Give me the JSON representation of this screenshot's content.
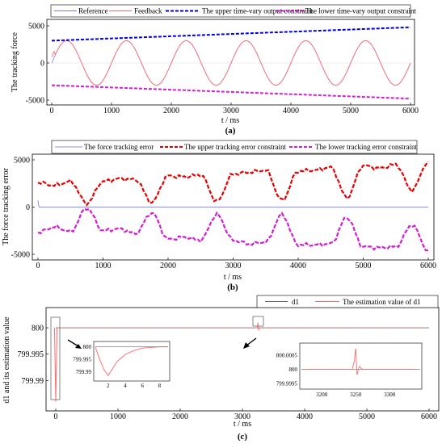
{
  "colors": {
    "reference": "#7a7aff",
    "feedback": "#ff6b6b",
    "upper": "#0000e6",
    "lower": "#d21ed2",
    "error": "#8c8cff",
    "upper_err": "#e60000",
    "d1": "#666666",
    "d1_est": "#ff6b6b"
  },
  "chart_data": [
    {
      "type": "line",
      "caption": "(a)",
      "xlabel": "t / ms",
      "ylabel": "The tracking force",
      "xlim": [
        0,
        6000
      ],
      "ylim": [
        -5000,
        5000
      ],
      "xticks": [
        "0",
        "1000",
        "2000",
        "3000",
        "4000",
        "5000",
        "6000"
      ],
      "yticks": [
        "5000",
        "0",
        "-5000"
      ],
      "legend_position": "top",
      "series": [
        {
          "name": "Reference",
          "style": "solid",
          "description": "sine, amplitude 3000, period 1000"
        },
        {
          "name": "Feedback",
          "style": "solid",
          "description": "sine, amplitude 3000, period 1000"
        },
        {
          "name": "The upper time-vary output constraint",
          "style": "dashed",
          "x": [
            0,
            6000
          ],
          "values": [
            3000,
            4800
          ]
        },
        {
          "name": "The lower time-vary output constraint",
          "style": "dashed",
          "x": [
            0,
            6000
          ],
          "values": [
            -3000,
            -4800
          ]
        }
      ]
    },
    {
      "type": "line",
      "caption": "(b)",
      "xlabel": "t / ms",
      "ylabel": "The force tracking error",
      "xlim": [
        0,
        6000
      ],
      "ylim": [
        -5000,
        5000
      ],
      "xticks": [
        "0",
        "1000",
        "2000",
        "3000",
        "4000",
        "5000",
        "6000"
      ],
      "yticks": [
        "5000",
        "0",
        "-5000"
      ],
      "legend_position": "top",
      "series": [
        {
          "name": "The force tracking error",
          "style": "solid",
          "description": "about 0"
        },
        {
          "name": "The upper tracking error constraint",
          "style": "dashed",
          "x": [
            0,
            250,
            500,
            750,
            1000,
            1250,
            1500,
            1750,
            2000,
            2250,
            2500,
            2750,
            3000,
            3250,
            3500,
            3750,
            4000,
            4250,
            4500,
            4750,
            5000,
            5250,
            5500,
            5750,
            6000
          ],
          "values": [
            2600,
            2300,
            2700,
            400,
            2700,
            3000,
            2900,
            500,
            3300,
            3200,
            3400,
            600,
            3500,
            3700,
            3900,
            700,
            3800,
            3900,
            4200,
            1000,
            4400,
            4100,
            4500,
            1800,
            4800
          ]
        },
        {
          "name": "The lower tracking error constraint",
          "style": "dashed",
          "x": [
            0,
            250,
            500,
            750,
            1000,
            1250,
            1500,
            1750,
            2000,
            2250,
            2500,
            2750,
            3000,
            3250,
            3500,
            3750,
            4000,
            4250,
            4500,
            4750,
            5000,
            5250,
            5500,
            5750,
            6000
          ],
          "values": [
            -2700,
            -2100,
            -2600,
            -100,
            -2500,
            -2300,
            -2800,
            -600,
            -3400,
            -3200,
            -3500,
            -800,
            -3500,
            -3900,
            -3700,
            -800,
            -4000,
            -4000,
            -3900,
            -1100,
            -4200,
            -4300,
            -4200,
            -1900,
            -4600
          ]
        }
      ]
    },
    {
      "type": "line",
      "caption": "(c)",
      "xlabel": "t / ms",
      "ylabel": "d1 and its estimation value",
      "xlim": [
        -100,
        6000
      ],
      "ylim": [
        799.985,
        800.002
      ],
      "xticks": [
        "0",
        "1000",
        "2000",
        "3000",
        "4000",
        "5000",
        "6000"
      ],
      "yticks": [
        "800",
        "799.995",
        "799.99"
      ],
      "legend_position": "top-right",
      "series": [
        {
          "name": "d1",
          "style": "solid",
          "x": [
            0,
            6000
          ],
          "values": [
            800,
            800
          ]
        },
        {
          "name": "The estimation value of d1",
          "style": "solid",
          "description": "800 with a brief dip to about 799.988 near t = 2 and a small spike near t = 3250"
        }
      ],
      "insets": [
        {
          "xticks": [
            "2",
            "4",
            "6",
            "8"
          ],
          "yticks": [
            "800",
            "799.995",
            "799.99"
          ],
          "x": [
            0.5,
            1,
            1.5,
            2,
            3,
            4,
            5,
            6,
            8,
            9
          ],
          "values": [
            800,
            799.995,
            799.991,
            799.9885,
            799.994,
            799.997,
            799.9985,
            799.9995,
            800,
            800
          ]
        },
        {
          "xticks": [
            "3200",
            "3250",
            "3300"
          ],
          "yticks": [
            "800.0005",
            "800",
            "799.9995"
          ],
          "x": [
            3175,
            3245,
            3248,
            3250,
            3252,
            3255,
            3260,
            3340
          ],
          "values": [
            800,
            800,
            800.0003,
            800.00075,
            799.9998,
            800.0001,
            800,
            800
          ]
        }
      ]
    }
  ]
}
